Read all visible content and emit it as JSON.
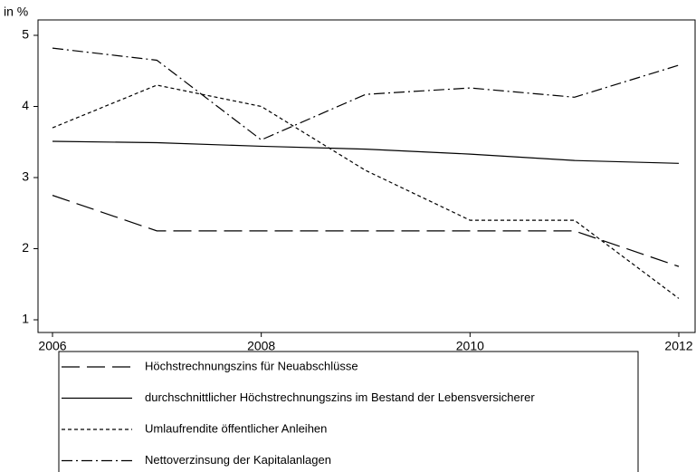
{
  "chart_data": {
    "type": "line",
    "y_label": "in %",
    "x": [
      2006,
      2007,
      2008,
      2009,
      2010,
      2011,
      2012
    ],
    "xlim": [
      2006,
      2012
    ],
    "xticks": [
      2006,
      2008,
      2010,
      2012
    ],
    "ylim": [
      1,
      5
    ],
    "yticks": [
      1,
      2,
      3,
      4,
      5
    ],
    "grid": false,
    "series": [
      {
        "name": "Höchstrechnungszins für Neuabschlüsse",
        "color": "#000000",
        "dash": "long-dash",
        "values": [
          2.75,
          2.25,
          2.25,
          2.25,
          2.25,
          2.25,
          1.75
        ]
      },
      {
        "name": "durchschnittlicher Höchstrechnungszins im Bestand der Lebensversicherer",
        "color": "#000000",
        "dash": "solid",
        "values": [
          3.51,
          3.49,
          3.44,
          3.4,
          3.33,
          3.24,
          3.2
        ]
      },
      {
        "name": "Umlaufrendite öffentlicher Anleihen",
        "color": "#000000",
        "dash": "short-dash",
        "values": [
          3.7,
          4.3,
          4.0,
          3.1,
          2.4,
          2.4,
          1.3
        ]
      },
      {
        "name": "Nettoverzinsung der Kapitalanlagen",
        "color": "#000000",
        "dash": "dash-dot",
        "values": [
          4.82,
          4.65,
          3.53,
          4.17,
          4.26,
          4.13,
          4.58
        ]
      }
    ]
  }
}
